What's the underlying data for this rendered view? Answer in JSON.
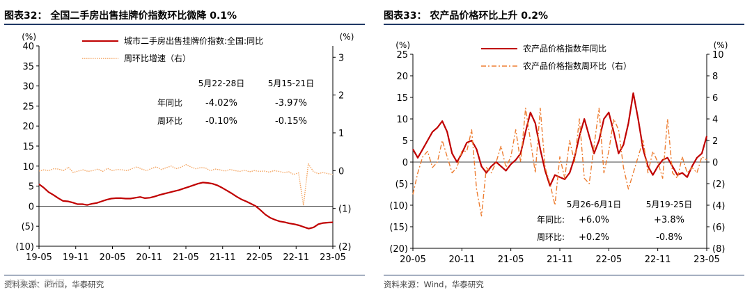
{
  "left": {
    "title": "图表32：  全国二手房出售挂牌价指数环比微降 0.1%",
    "source": "资料来源：iFinD，华泰研究",
    "watermark": "市场 大  数据",
    "chart_data": {
      "type": "line",
      "x_labels": [
        "19-05",
        "19-11",
        "20-05",
        "20-11",
        "21-05",
        "21-11",
        "22-05",
        "22-11",
        "23-05"
      ],
      "left_axis": {
        "unit": "(%)",
        "ticks": [
          "40",
          "35",
          "30",
          "25",
          "20",
          "15",
          "10",
          "5",
          "0",
          "(5)",
          "(10)"
        ],
        "ylim": [
          -10,
          40
        ]
      },
      "right_axis": {
        "unit": "(%)",
        "ticks": [
          "3",
          "2",
          "1",
          "0",
          "(1)",
          "(2)"
        ],
        "ylim": [
          -2,
          3.3
        ]
      },
      "series": [
        {
          "name": "城市二手房出售挂牌价指数:全国:同比",
          "axis": "left",
          "color": "#c00000",
          "style": "solid",
          "values": [
            5.5,
            4.6,
            3.5,
            2.8,
            2.0,
            1.3,
            1.2,
            0.9,
            0.5,
            0.5,
            0.3,
            0.6,
            0.8,
            1.2,
            1.6,
            1.9,
            2.0,
            2.0,
            1.9,
            1.9,
            2.1,
            2.3,
            2.0,
            2.1,
            2.4,
            2.8,
            3.1,
            3.4,
            3.7,
            4.0,
            4.4,
            4.8,
            5.2,
            5.6,
            5.9,
            5.8,
            5.6,
            5.2,
            4.6,
            3.9,
            3.2,
            2.4,
            1.7,
            1.2,
            0.6,
            0.0,
            -1.0,
            -2.1,
            -2.9,
            -3.4,
            -3.8,
            -4.0,
            -4.3,
            -4.5,
            -4.8,
            -5.2,
            -5.6,
            -5.3,
            -4.5,
            -4.2,
            -4.1,
            -4.02
          ]
        },
        {
          "name": "周环比增速（右）",
          "axis": "right",
          "color": "#f4a460",
          "style": "dotted",
          "values": [
            -0.01,
            0.02,
            0.0,
            0.05,
            0.04,
            0.0,
            0.09,
            -0.05,
            -0.01,
            0.02,
            -0.02,
            0.0,
            0.04,
            -0.02,
            0.06,
            0.0,
            0.03,
            0.02,
            0.0,
            0.05,
            0.1,
            0.04,
            0.0,
            0.06,
            0.1,
            0.03,
            0.08,
            0.12,
            0.05,
            0.09,
            0.16,
            0.1,
            0.05,
            0.08,
            0.07,
            0.0,
            0.04,
            0.02,
            -0.01,
            0.03,
            0.0,
            -0.02,
            0.01,
            -0.03,
            0.0,
            -0.02,
            -0.01,
            -0.04,
            0.0,
            -0.02,
            -0.05,
            -0.03,
            -0.1,
            -0.06,
            -0.92,
            0.18,
            -0.02,
            -0.08,
            -0.05,
            -0.08,
            -0.1
          ]
        }
      ],
      "table": {
        "col_headers": [
          "5月22-28日",
          "5月15-21日"
        ],
        "rows": [
          {
            "label": "年同比",
            "values": [
              "-4.02%",
              "-3.97%"
            ]
          },
          {
            "label": "周环比",
            "values": [
              "-0.10%",
              "-0.15%"
            ]
          }
        ]
      }
    }
  },
  "right": {
    "title": "图表33：  农产品价格环比上升 0.2%",
    "source": "资料来源：Wind，华泰研究",
    "chart_data": {
      "type": "line",
      "x_labels": [
        "20-05",
        "20-11",
        "21-05",
        "21-11",
        "22-05",
        "22-11",
        "23-05"
      ],
      "left_axis": {
        "unit": "(%)",
        "ticks": [
          "25",
          "20",
          "15",
          "10",
          "5",
          "0",
          "(5)",
          "(10)",
          "(15)",
          "(20)"
        ],
        "ylim": [
          -20,
          25
        ]
      },
      "right_axis": {
        "unit": "(%)",
        "ticks": [
          "10",
          "8",
          "6",
          "4",
          "2",
          "0",
          "(2)",
          "(4)",
          "(6)",
          "(8)"
        ],
        "ylim": [
          -8,
          10
        ]
      },
      "series": [
        {
          "name": "农产品价格指数年同比",
          "axis": "left",
          "color": "#c00000",
          "style": "solid",
          "values": [
            3.0,
            1.0,
            3.0,
            5.0,
            7.0,
            8.0,
            9.5,
            7.0,
            2.0,
            0.0,
            2.0,
            4.5,
            5.0,
            3.0,
            -1.0,
            -2.5,
            -1.0,
            0.0,
            -1.0,
            -2.0,
            -0.5,
            0.5,
            2.0,
            7.0,
            11.5,
            9.0,
            3.0,
            -2.0,
            -5.5,
            -3.0,
            -3.5,
            -4.0,
            -2.5,
            1.0,
            6.0,
            10.0,
            6.0,
            2.0,
            5.0,
            10.0,
            11.5,
            7.0,
            2.0,
            4.0,
            9.0,
            16.0,
            10.0,
            3.0,
            -1.0,
            -3.0,
            -1.0,
            0.5,
            1.0,
            -1.0,
            -3.0,
            -2.5,
            -3.5,
            -1.0,
            1.0,
            2.0,
            6.0
          ]
        },
        {
          "name": "农产品价格指数周环比（右）",
          "axis": "right",
          "color": "#ed7d31",
          "style": "dashdot",
          "values": [
            -3.0,
            -1.0,
            0.5,
            1.0,
            -0.5,
            0.0,
            2.0,
            0.5,
            -1.0,
            -0.5,
            1.0,
            1.0,
            3.0,
            -2.5,
            -5.0,
            -0.5,
            -1.0,
            0.0,
            1.5,
            -0.5,
            0.5,
            3.0,
            0.0,
            5.0,
            2.0,
            -1.0,
            5.0,
            -0.5,
            -2.0,
            -4.0,
            0.5,
            -1.5,
            2.0,
            0.0,
            4.0,
            -1.5,
            -2.0,
            1.5,
            5.0,
            -1.0,
            1.0,
            4.0,
            3.0,
            -0.5,
            -2.5,
            -1.0,
            0.5,
            2.0,
            -1.0,
            1.0,
            0.0,
            -1.5,
            4.0,
            -1.0,
            -1.5,
            0.5,
            -1.0,
            -0.5,
            -1.0,
            0.5,
            0.2
          ]
        }
      ],
      "table": {
        "col_headers": [
          "5月26-6月1日",
          "5月19-25日"
        ],
        "rows": [
          {
            "label": "年同比:",
            "values": [
              "+6.0%",
              "+3.8%"
            ]
          },
          {
            "label": "周环比:",
            "values": [
              "+0.2%",
              "-0.8%"
            ]
          }
        ]
      }
    }
  }
}
